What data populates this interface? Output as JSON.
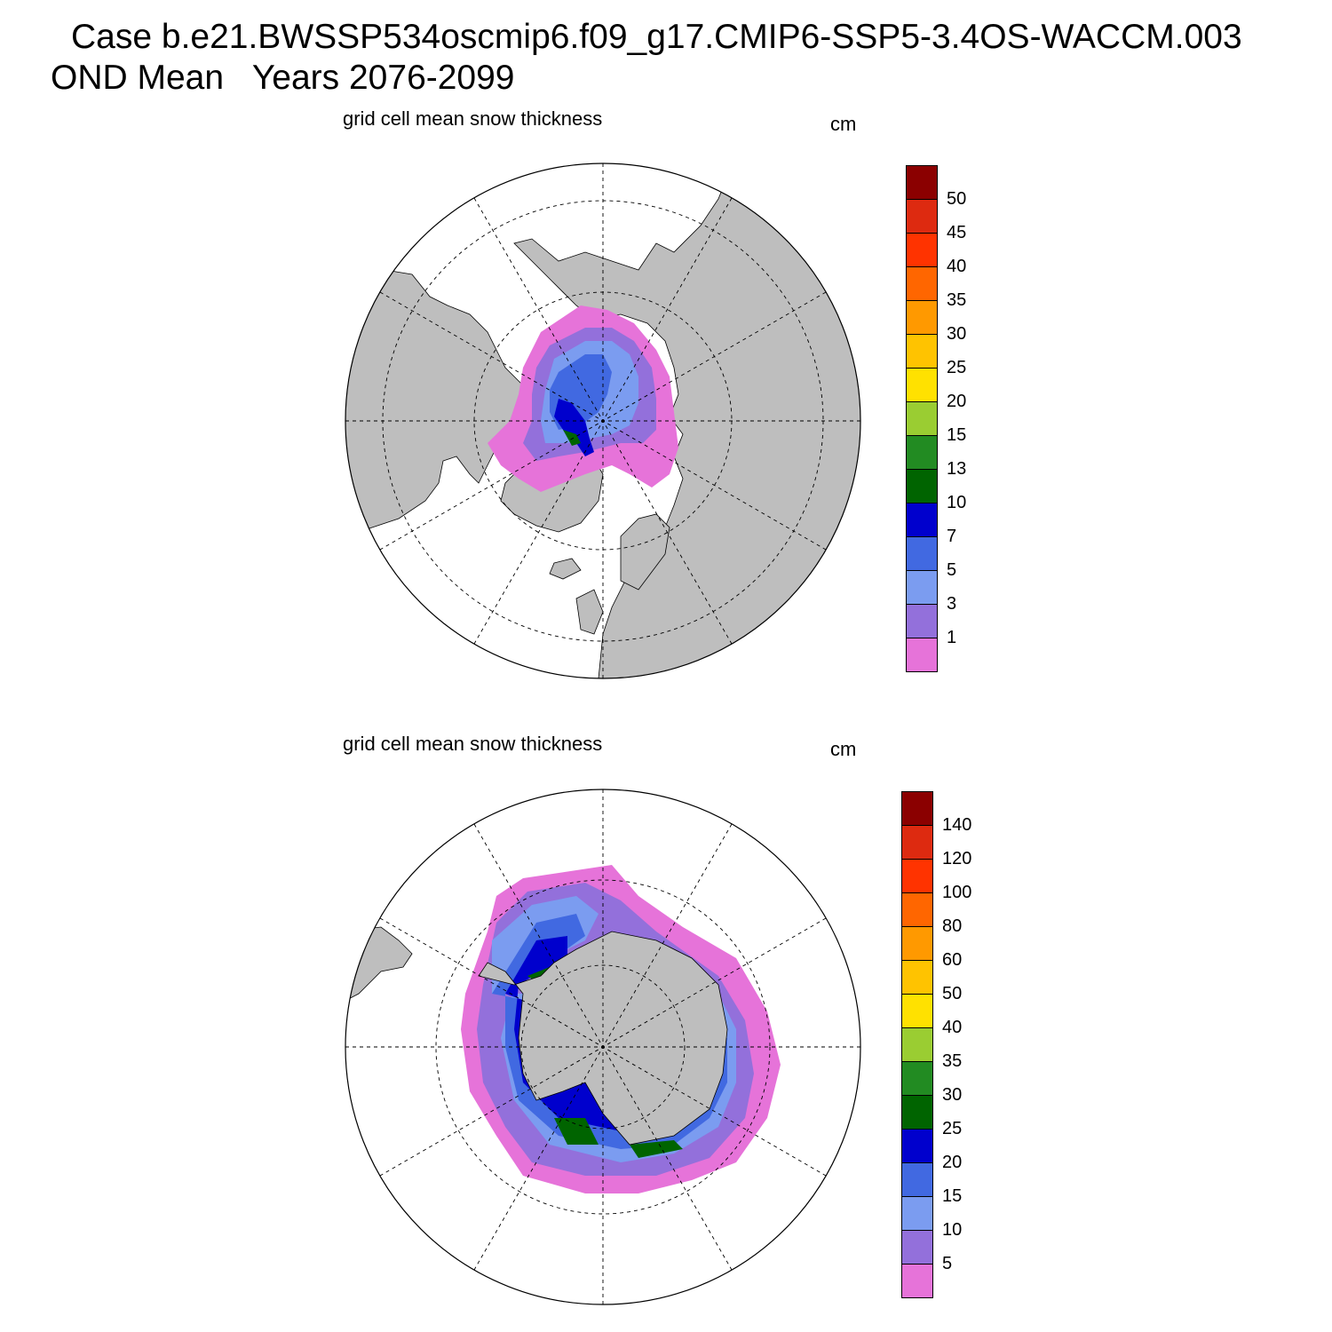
{
  "header": {
    "title_line1": "Case b.e21.BWSSP534oscmip6.f09_g17.CMIP6-SSP5-3.4OS-WACCM.003",
    "title_line2": "OND Mean   Years 2076-2099"
  },
  "colors": {
    "land": "#bebebe",
    "ocean": "#ffffff",
    "scale": [
      "#e673d9",
      "#9370db",
      "#7b9cf0",
      "#4169e1",
      "#0000cd",
      "#006400",
      "#228b22",
      "#9acd32",
      "#ffe100",
      "#ffc300",
      "#ff9900",
      "#ff6600",
      "#ff3300",
      "#dd2a10",
      "#8b0000"
    ]
  },
  "panels": [
    {
      "id": "arctic",
      "region": "Northern Hemisphere",
      "title": "grid cell mean snow thickness",
      "unit": "cm",
      "colorbar_levels": [
        "1",
        "3",
        "5",
        "7",
        "10",
        "13",
        "15",
        "20",
        "25",
        "30",
        "35",
        "40",
        "45",
        "50"
      ]
    },
    {
      "id": "antarctic",
      "region": "Southern Hemisphere",
      "title": "grid cell mean snow thickness",
      "unit": "cm",
      "colorbar_levels": [
        "5",
        "10",
        "15",
        "20",
        "25",
        "30",
        "35",
        "40",
        "50",
        "60",
        "80",
        "100",
        "120",
        "140"
      ]
    }
  ]
}
